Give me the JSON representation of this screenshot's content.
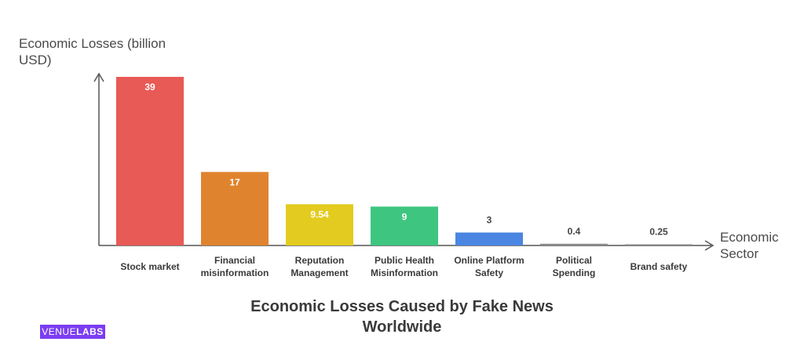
{
  "chart_data": {
    "type": "bar",
    "title": "Economic Losses Caused by Fake News Worldwide",
    "ylabel": "Economic Losses (billion USD)",
    "xlabel": "Economic Sector",
    "categories": [
      "Stock market",
      "Financial misinformation",
      "Reputation Management",
      "Public Health Misinformation",
      "Online Platform Safety",
      "Political Spending",
      "Brand safety"
    ],
    "category_lines": [
      [
        "Stock market"
      ],
      [
        "Financial",
        "misinformation"
      ],
      [
        "Reputation",
        "Management"
      ],
      [
        "Public Health",
        "Misinformation"
      ],
      [
        "Online Platform",
        "Safety"
      ],
      [
        "Political",
        "Spending"
      ],
      [
        "Brand safety"
      ]
    ],
    "values": [
      39,
      17,
      9.54,
      9,
      3,
      0.4,
      0.25
    ],
    "value_labels": [
      "39",
      "17",
      "9.54",
      "9",
      "3",
      "0.4",
      "0.25"
    ],
    "colors": [
      "#e85a55",
      "#e0832e",
      "#e4cb1f",
      "#3ec680",
      "#4a86e2",
      "#8a8a8a",
      "#8a8a8a"
    ],
    "ylim": [
      0,
      39
    ],
    "grid": false,
    "legend": "none"
  },
  "brand": {
    "part1": "VENUE",
    "part2": "LABS",
    "color": "#7b3df2"
  }
}
